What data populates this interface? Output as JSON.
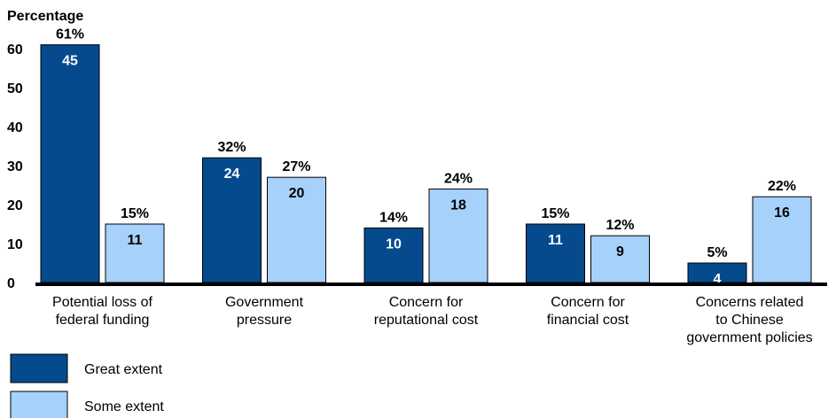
{
  "chart_data": {
    "type": "bar",
    "ylabel": "Percentage",
    "ylim": [
      0,
      60
    ],
    "yticks": [
      0,
      10,
      20,
      30,
      40,
      50,
      60
    ],
    "grid": false,
    "legend_position": "bottom-left",
    "categories": [
      [
        "Potential loss of",
        "federal funding"
      ],
      [
        "Government",
        "pressure"
      ],
      [
        "Concern for",
        "reputational cost"
      ],
      [
        "Concern for",
        "financial cost"
      ],
      [
        "Concerns related",
        "to Chinese",
        "government policies"
      ]
    ],
    "series": [
      {
        "name": "Great extent",
        "color": "#044a8c",
        "values": [
          61,
          32,
          14,
          15,
          5
        ],
        "percent_labels": [
          "61%",
          "32%",
          "14%",
          "15%",
          "5%"
        ],
        "counts": [
          "45",
          "24",
          "10",
          "11",
          "4"
        ]
      },
      {
        "name": "Some extent",
        "color": "#a6d1fb",
        "values": [
          15,
          27,
          24,
          12,
          22
        ],
        "percent_labels": [
          "15%",
          "27%",
          "24%",
          "12%",
          "22%"
        ],
        "counts": [
          "11",
          "20",
          "18",
          "9",
          "16"
        ]
      }
    ]
  }
}
